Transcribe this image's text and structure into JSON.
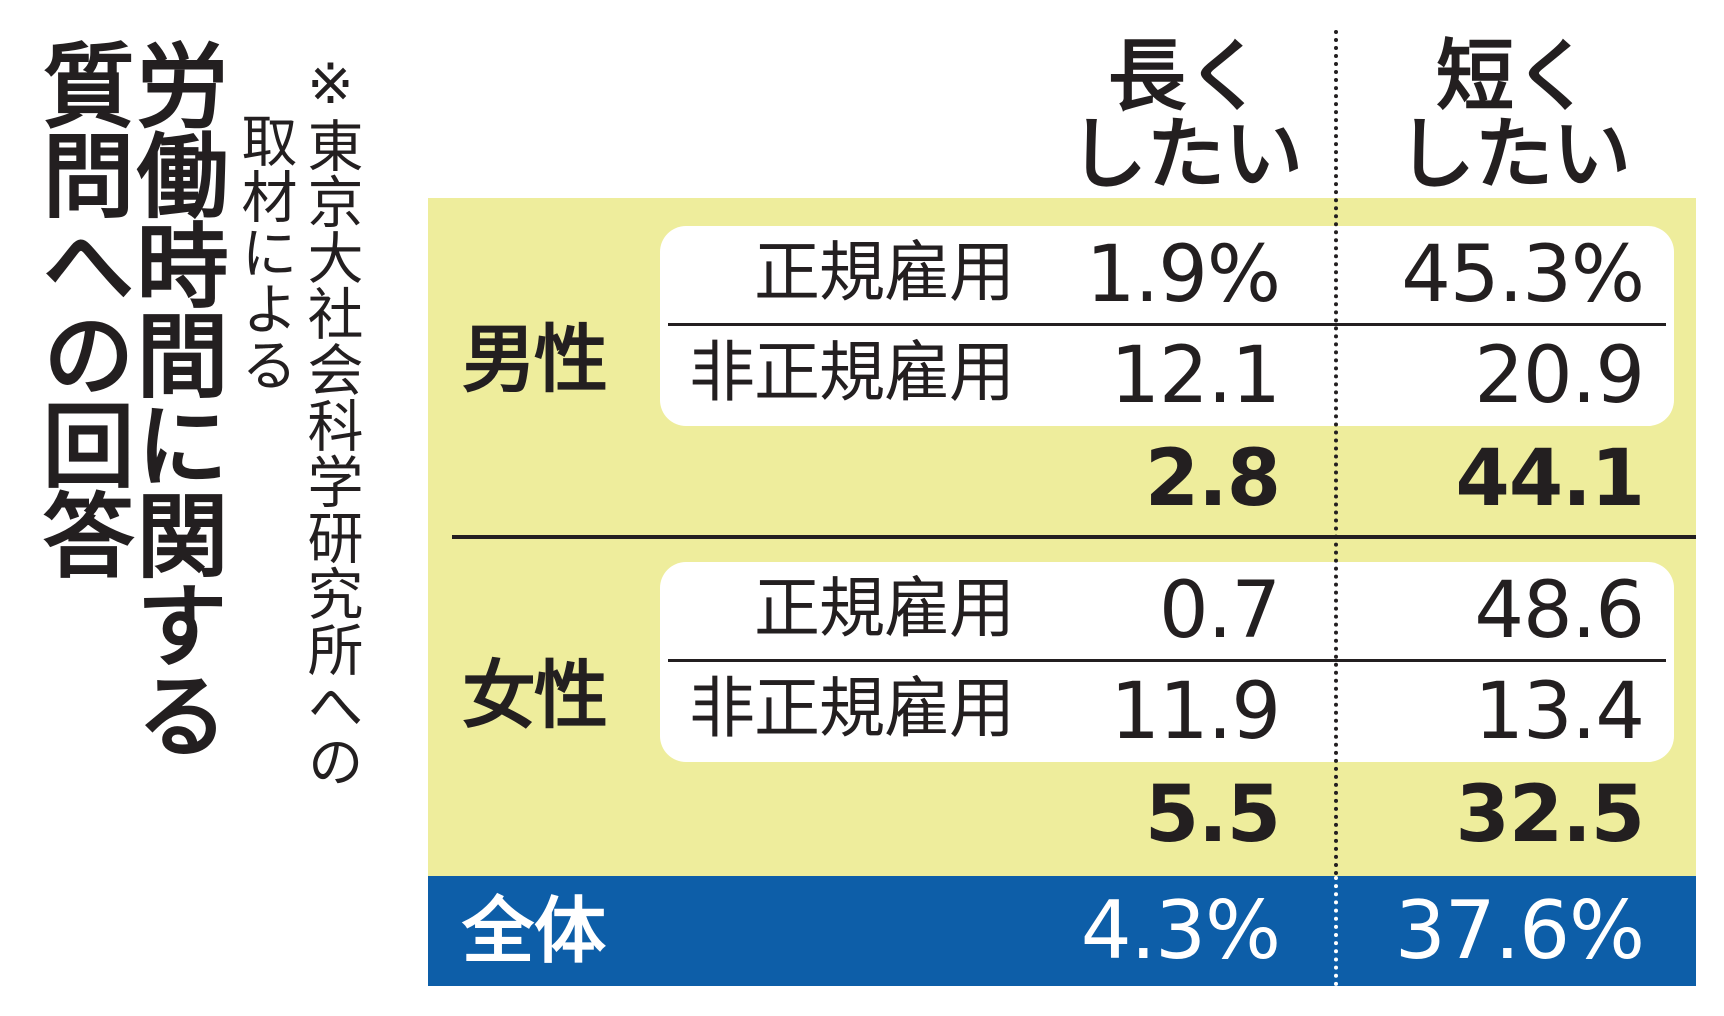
{
  "title": [
    "労働時間に関する",
    "質問への回答"
  ],
  "source_note": [
    "※東京大社会科学研究所への",
    "取材による"
  ],
  "chart_data": {
    "type": "table",
    "columns": [
      "長く\nしたい",
      "短く\nしたい"
    ],
    "groups": [
      {
        "label": "男性",
        "rows": [
          {
            "label": "正規雇用",
            "longer": "1.9%",
            "shorter": "45.3%"
          },
          {
            "label": "非正規雇用",
            "longer": "12.1",
            "shorter": "20.9"
          }
        ],
        "subtotal": {
          "longer": "2.8",
          "shorter": "44.1"
        }
      },
      {
        "label": "女性",
        "rows": [
          {
            "label": "正規雇用",
            "longer": "0.7",
            "shorter": "48.6"
          },
          {
            "label": "非正規雇用",
            "longer": "11.9",
            "shorter": "13.4"
          }
        ],
        "subtotal": {
          "longer": "5.5",
          "shorter": "32.5"
        }
      }
    ],
    "total": {
      "label": "全体",
      "longer": "4.3%",
      "shorter": "37.6%"
    }
  },
  "colors": {
    "panel": "#eeed9c",
    "total_bar": "#0d5ea8",
    "text": "#231f20"
  }
}
